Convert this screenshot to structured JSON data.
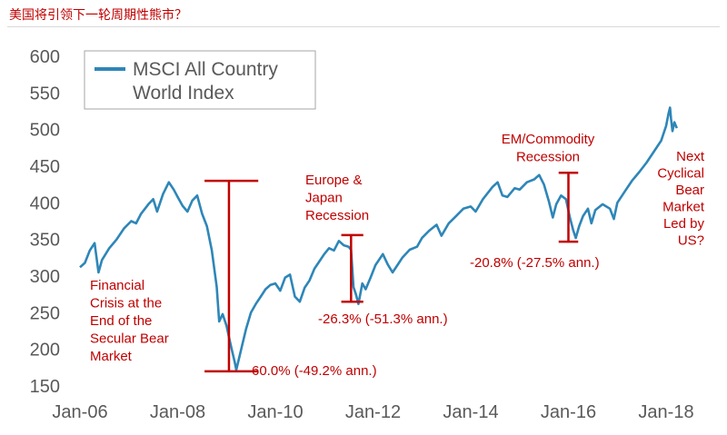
{
  "page": {
    "title": "美国将引领下一轮周期性熊市？"
  },
  "chart_data": {
    "type": "line",
    "title": "",
    "xlabel": "",
    "ylabel": "",
    "ylim": [
      150,
      600
    ],
    "yticks": [
      150,
      200,
      250,
      300,
      350,
      400,
      450,
      500,
      550,
      600
    ],
    "x_tick_labels": [
      "Jan-06",
      "Jan-08",
      "Jan-10",
      "Jan-12",
      "Jan-14",
      "Jan-16",
      "Jan-18"
    ],
    "x_tick_years": [
      2006,
      2008,
      2010,
      2012,
      2014,
      2016,
      2018
    ],
    "legend": {
      "position": "top-left",
      "label": "MSCI All Country World Index"
    },
    "series": [
      {
        "name": "MSCI All Country World Index",
        "color": "#2e86b8",
        "points": [
          [
            2006.0,
            312
          ],
          [
            2006.1,
            318
          ],
          [
            2006.2,
            335
          ],
          [
            2006.3,
            345
          ],
          [
            2006.38,
            305
          ],
          [
            2006.45,
            322
          ],
          [
            2006.6,
            338
          ],
          [
            2006.75,
            350
          ],
          [
            2006.9,
            365
          ],
          [
            2007.05,
            375
          ],
          [
            2007.15,
            372
          ],
          [
            2007.25,
            385
          ],
          [
            2007.4,
            398
          ],
          [
            2007.5,
            405
          ],
          [
            2007.58,
            388
          ],
          [
            2007.7,
            412
          ],
          [
            2007.82,
            428
          ],
          [
            2007.92,
            418
          ],
          [
            2008.0,
            408
          ],
          [
            2008.1,
            396
          ],
          [
            2008.2,
            388
          ],
          [
            2008.3,
            403
          ],
          [
            2008.4,
            410
          ],
          [
            2008.5,
            385
          ],
          [
            2008.6,
            368
          ],
          [
            2008.7,
            335
          ],
          [
            2008.8,
            285
          ],
          [
            2008.85,
            238
          ],
          [
            2008.92,
            248
          ],
          [
            2009.0,
            232
          ],
          [
            2009.08,
            208
          ],
          [
            2009.17,
            182
          ],
          [
            2009.2,
            172
          ],
          [
            2009.3,
            200
          ],
          [
            2009.4,
            228
          ],
          [
            2009.5,
            250
          ],
          [
            2009.6,
            262
          ],
          [
            2009.7,
            272
          ],
          [
            2009.8,
            282
          ],
          [
            2009.9,
            288
          ],
          [
            2010.0,
            290
          ],
          [
            2010.1,
            280
          ],
          [
            2010.2,
            298
          ],
          [
            2010.3,
            302
          ],
          [
            2010.4,
            272
          ],
          [
            2010.5,
            265
          ],
          [
            2010.6,
            284
          ],
          [
            2010.7,
            294
          ],
          [
            2010.8,
            310
          ],
          [
            2010.9,
            320
          ],
          [
            2011.0,
            330
          ],
          [
            2011.1,
            338
          ],
          [
            2011.2,
            335
          ],
          [
            2011.3,
            348
          ],
          [
            2011.4,
            342
          ],
          [
            2011.5,
            340
          ],
          [
            2011.55,
            336
          ],
          [
            2011.6,
            285
          ],
          [
            2011.65,
            275
          ],
          [
            2011.7,
            262
          ],
          [
            2011.78,
            290
          ],
          [
            2011.85,
            282
          ],
          [
            2011.95,
            298
          ],
          [
            2012.05,
            315
          ],
          [
            2012.2,
            330
          ],
          [
            2012.3,
            316
          ],
          [
            2012.4,
            305
          ],
          [
            2012.5,
            315
          ],
          [
            2012.6,
            325
          ],
          [
            2012.75,
            336
          ],
          [
            2012.9,
            340
          ],
          [
            2013.0,
            352
          ],
          [
            2013.15,
            362
          ],
          [
            2013.3,
            370
          ],
          [
            2013.4,
            355
          ],
          [
            2013.55,
            372
          ],
          [
            2013.7,
            382
          ],
          [
            2013.85,
            392
          ],
          [
            2014.0,
            395
          ],
          [
            2014.1,
            388
          ],
          [
            2014.25,
            405
          ],
          [
            2014.45,
            422
          ],
          [
            2014.55,
            428
          ],
          [
            2014.65,
            410
          ],
          [
            2014.75,
            408
          ],
          [
            2014.9,
            420
          ],
          [
            2015.0,
            418
          ],
          [
            2015.15,
            428
          ],
          [
            2015.3,
            432
          ],
          [
            2015.4,
            438
          ],
          [
            2015.5,
            425
          ],
          [
            2015.6,
            402
          ],
          [
            2015.68,
            380
          ],
          [
            2015.75,
            398
          ],
          [
            2015.85,
            410
          ],
          [
            2015.95,
            405
          ],
          [
            2016.03,
            380
          ],
          [
            2016.1,
            362
          ],
          [
            2016.15,
            352
          ],
          [
            2016.22,
            368
          ],
          [
            2016.3,
            382
          ],
          [
            2016.4,
            392
          ],
          [
            2016.47,
            372
          ],
          [
            2016.55,
            390
          ],
          [
            2016.7,
            398
          ],
          [
            2016.85,
            392
          ],
          [
            2016.93,
            378
          ],
          [
            2017.0,
            400
          ],
          [
            2017.15,
            415
          ],
          [
            2017.3,
            430
          ],
          [
            2017.45,
            442
          ],
          [
            2017.6,
            455
          ],
          [
            2017.75,
            470
          ],
          [
            2017.9,
            485
          ],
          [
            2018.0,
            505
          ],
          [
            2018.05,
            522
          ],
          [
            2018.08,
            530
          ],
          [
            2018.1,
            515
          ],
          [
            2018.13,
            498
          ],
          [
            2018.17,
            510
          ],
          [
            2018.22,
            502
          ]
        ]
      }
    ],
    "annotations": [
      {
        "label_lines": [
          "Financial",
          "Crisis at the",
          "End of the",
          "Secular Bear",
          "Market"
        ],
        "drawdown_text": "-60.0% (-49.2% ann.)",
        "x_from": 2008.55,
        "x_to": 2009.65,
        "x": 2009.05,
        "y_top": 430,
        "y_bottom": 170
      },
      {
        "label_lines": [
          "Europe &",
          "Japan",
          "Recession"
        ],
        "drawdown_text": "-26.3% (-51.3% ann.)",
        "x_from": 2011.35,
        "x_to": 2011.8,
        "x": 2011.55,
        "y_top": 356,
        "y_bottom": 265
      },
      {
        "label_lines": [
          "EM/Commodity",
          "Recession"
        ],
        "drawdown_text": "-20.8% (-27.5% ann.)",
        "x_from": 2015.8,
        "x_to": 2016.2,
        "x": 2016.0,
        "y_top": 441,
        "y_bottom": 347
      },
      {
        "label_lines": [
          "Next",
          "Cyclical",
          "Bear",
          "Market",
          "Led by",
          "US?"
        ],
        "drawdown_text": "",
        "x_from": 2018.3,
        "x_to": 2018.3,
        "x": 2018.3,
        "y_top": 478,
        "y_bottom": 478
      }
    ],
    "annotation_color": "#c00000"
  }
}
